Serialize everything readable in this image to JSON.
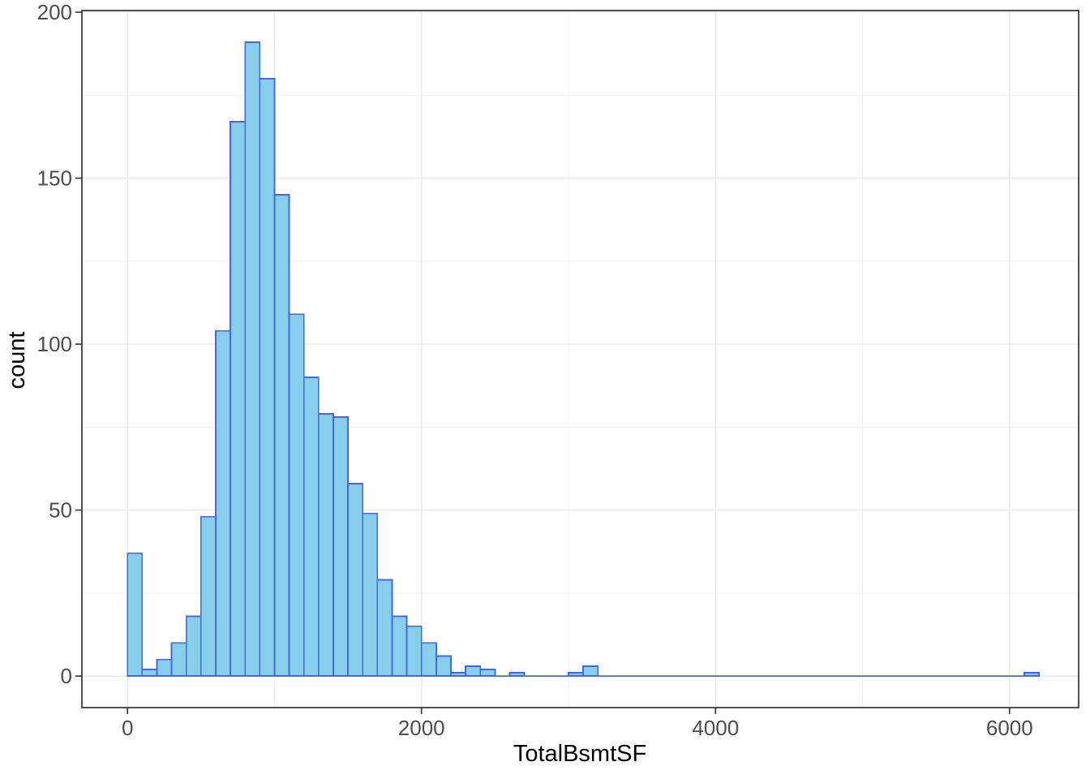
{
  "chart_data": {
    "type": "bar",
    "subtype": "histogram",
    "title": "",
    "xlabel": "TotalBsmtSF",
    "ylabel": "count",
    "bin_start": 0,
    "bin_width": 100,
    "counts": [
      37,
      2,
      5,
      10,
      18,
      48,
      104,
      167,
      191,
      180,
      145,
      109,
      90,
      79,
      78,
      58,
      49,
      29,
      18,
      15,
      10,
      6,
      1,
      3,
      2,
      0,
      1,
      0,
      0,
      0,
      1,
      3,
      0,
      0,
      0,
      0,
      0,
      0,
      0,
      0,
      0,
      0,
      0,
      0,
      0,
      0,
      0,
      0,
      0,
      0,
      0,
      0,
      0,
      0,
      0,
      0,
      0,
      0,
      0,
      0,
      0,
      1
    ],
    "total_count": 1460,
    "xlim": [
      -310,
      6470
    ],
    "ylim": [
      -9.5,
      200.5
    ],
    "x_ticks": [
      0,
      2000,
      4000,
      6000
    ],
    "x_tick_labels": [
      "0",
      "2000",
      "4000",
      "6000"
    ],
    "y_ticks": [
      0,
      50,
      100,
      150,
      200
    ],
    "y_tick_labels": [
      "0",
      "50",
      "100",
      "150",
      "200"
    ],
    "x_minor_gridlines": [
      1000,
      3000,
      5000
    ],
    "y_minor_gridlines": [
      25,
      75,
      125,
      175
    ],
    "grid": true,
    "legend": "none",
    "colors": {
      "bar_fill": "#87CEEB",
      "bar_stroke": "#4169E1",
      "grid_major": "#EAEAEA",
      "grid_minor": "#F1F1F1",
      "panel_border": "#333333",
      "tick_label": "#4D4D4D",
      "axis_title": "#000000",
      "background": "#FFFFFF"
    }
  }
}
